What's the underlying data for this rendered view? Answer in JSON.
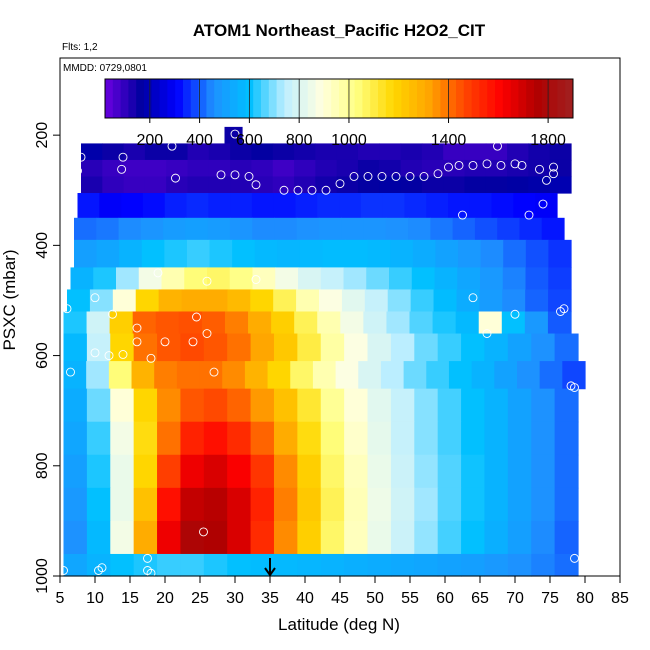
{
  "chart_data": {
    "type": "heatmap",
    "title": "ATOM1 Northeast_Pacific H2O2_CIT",
    "flights_label": "Flts: 1,2",
    "dates_label": "MMDD: 0729,0801",
    "xlabel": "Latitude (deg N)",
    "ylabel": "PSXC (mbar)",
    "xlim": [
      5,
      85
    ],
    "ylim": [
      1000,
      60
    ],
    "y_reversed": true,
    "x_ticks": [
      5,
      10,
      15,
      20,
      25,
      30,
      35,
      40,
      45,
      50,
      55,
      60,
      65,
      70,
      75,
      80,
      85
    ],
    "y_ticks": [
      200,
      400,
      600,
      800,
      1000
    ],
    "colorbar": {
      "range": [
        20,
        1900
      ],
      "tick_values": [
        200,
        400,
        600,
        800,
        1000,
        1400,
        1800
      ],
      "colors": [
        "#6a00e0",
        "#0000a0",
        "#0000ff",
        "#1e90ff",
        "#00bfff",
        "#bfefff",
        "#ffffe0",
        "#ffff80",
        "#ffd700",
        "#ffa500",
        "#ff4500",
        "#ff0000",
        "#b00000",
        "#a02020"
      ]
    },
    "marker": {
      "x": 35,
      "label": "arrow"
    },
    "rows": [
      {
        "p": [
          185,
          215
        ],
        "x": [
          28.5,
          31
        ],
        "v": [
          150
        ]
      },
      {
        "p": [
          215,
          245
        ],
        "x": [
          8,
          78
        ],
        "v": [
          180,
          150,
          130,
          150,
          150,
          120,
          130,
          150,
          160,
          150,
          140,
          130,
          130,
          120,
          120,
          130,
          120,
          90,
          90,
          90,
          120,
          140,
          150
        ]
      },
      {
        "p": [
          245,
          275
        ],
        "x": [
          8,
          78
        ],
        "v": [
          110,
          90,
          80,
          80,
          90,
          100,
          100,
          110,
          100,
          80,
          100,
          120,
          130,
          150,
          140,
          120,
          110,
          110,
          120,
          120,
          130,
          140,
          150
        ]
      },
      {
        "p": [
          275,
          305
        ],
        "x": [
          8,
          78
        ],
        "v": [
          130,
          100,
          90,
          90,
          110,
          120,
          120,
          120,
          110,
          100,
          120,
          140,
          150,
          160,
          170,
          160,
          150,
          150,
          160,
          160,
          170,
          180,
          190
        ]
      },
      {
        "p": [
          305,
          350
        ],
        "x": [
          7.5,
          76
        ],
        "v": [
          330,
          300,
          310,
          320,
          340,
          350,
          340,
          340,
          330,
          330,
          340,
          350,
          350,
          360,
          360,
          350,
          340,
          330,
          330,
          320,
          310,
          300
        ]
      },
      {
        "p": [
          350,
          390
        ],
        "x": [
          7,
          77
        ],
        "v": [
          420,
          430,
          450,
          470,
          490,
          500,
          490,
          470,
          450,
          450,
          460,
          470,
          470,
          470,
          460,
          450,
          430,
          410,
          390,
          370,
          350,
          330
        ]
      },
      {
        "p": [
          390,
          440
        ],
        "x": [
          7,
          78
        ],
        "v": [
          500,
          520,
          560,
          600,
          620,
          640,
          620,
          600,
          580,
          570,
          580,
          590,
          590,
          580,
          560,
          540,
          510,
          480,
          450,
          420,
          390,
          360
        ]
      },
      {
        "p": [
          440,
          480
        ],
        "x": [
          6.5,
          78
        ],
        "v": [
          560,
          620,
          720,
          860,
          960,
          1040,
          1060,
          1020,
          940,
          860,
          800,
          760,
          720,
          680,
          640,
          600,
          560,
          520,
          480,
          440,
          400,
          370
        ]
      },
      {
        "p": [
          480,
          520
        ],
        "x": [
          6,
          78
        ],
        "v": [
          600,
          700,
          900,
          1180,
          1280,
          1300,
          1300,
          1260,
          1180,
          1080,
          960,
          880,
          820,
          760,
          700,
          640,
          590,
          540,
          490,
          450,
          410,
          380
        ]
      },
      {
        "p": [
          520,
          560
        ],
        "x": [
          5.5,
          78
        ],
        "v": [
          620,
          780,
          1200,
          1420,
          1440,
          1450,
          1430,
          1380,
          1300,
          1200,
          1080,
          960,
          860,
          780,
          720,
          660,
          620,
          580,
          900,
          600,
          480,
          400
        ]
      },
      {
        "p": [
          560,
          610
        ],
        "x": [
          5.5,
          79
        ],
        "v": [
          580,
          760,
          1180,
          1400,
          1440,
          1460,
          1440,
          1400,
          1320,
          1220,
          1100,
          980,
          880,
          800,
          740,
          680,
          640,
          600,
          560,
          510,
          460,
          420
        ]
      },
      {
        "p": [
          610,
          660
        ],
        "x": [
          5.5,
          80
        ],
        "v": [
          560,
          720,
          1040,
          1280,
          1380,
          1400,
          1400,
          1360,
          1280,
          1180,
          1060,
          960,
          880,
          800,
          740,
          680,
          640,
          600,
          560,
          510,
          460,
          420,
          380
        ]
      },
      {
        "p": [
          660,
          720
        ],
        "x": [
          5.5,
          79
        ],
        "v": [
          540,
          680,
          900,
          1180,
          1360,
          1440,
          1460,
          1420,
          1340,
          1240,
          1120,
          1000,
          900,
          820,
          760,
          700,
          650,
          600,
          560,
          510,
          460,
          420
        ]
      },
      {
        "p": [
          720,
          780
        ],
        "x": [
          5.5,
          79
        ],
        "v": [
          520,
          640,
          860,
          1160,
          1400,
          1540,
          1580,
          1520,
          1420,
          1300,
          1160,
          1040,
          920,
          830,
          760,
          700,
          650,
          600,
          560,
          510,
          460,
          420
        ]
      },
      {
        "p": [
          780,
          840
        ],
        "x": [
          5.5,
          79
        ],
        "v": [
          500,
          620,
          840,
          1180,
          1480,
          1640,
          1680,
          1620,
          1500,
          1360,
          1200,
          1060,
          940,
          840,
          770,
          710,
          660,
          610,
          560,
          510,
          460,
          420
        ]
      },
      {
        "p": [
          840,
          900
        ],
        "x": [
          5.5,
          79
        ],
        "v": [
          480,
          600,
          840,
          1240,
          1580,
          1720,
          1740,
          1680,
          1540,
          1380,
          1220,
          1080,
          950,
          850,
          780,
          720,
          660,
          610,
          560,
          510,
          460,
          420
        ]
      },
      {
        "p": [
          900,
          960
        ],
        "x": [
          5.5,
          79
        ],
        "v": [
          460,
          580,
          860,
          1300,
          1640,
          1780,
          1760,
          1680,
          1520,
          1360,
          1200,
          1060,
          940,
          840,
          770,
          710,
          650,
          600,
          550,
          500,
          450,
          410
        ]
      },
      {
        "p": [
          960,
          1000
        ],
        "x": [
          5.5,
          79
        ],
        "v": [
          520,
          560,
          600,
          620,
          640,
          640,
          620,
          600,
          590,
          580,
          570,
          560,
          550,
          540,
          530,
          520,
          510,
          500,
          480,
          460,
          440,
          420
        ]
      }
    ],
    "points": [
      [
        8,
        240
      ],
      [
        7.5,
        265
      ],
      [
        14,
        240
      ],
      [
        13.8,
        262
      ],
      [
        21,
        220
      ],
      [
        21.5,
        278
      ],
      [
        27.5,
        198
      ],
      [
        30,
        198
      ],
      [
        28,
        272
      ],
      [
        30,
        272
      ],
      [
        32,
        275
      ],
      [
        33,
        290
      ],
      [
        37,
        300
      ],
      [
        39,
        300
      ],
      [
        41,
        300
      ],
      [
        43,
        300
      ],
      [
        45,
        288
      ],
      [
        47,
        275
      ],
      [
        49,
        275
      ],
      [
        51,
        275
      ],
      [
        53,
        275
      ],
      [
        55,
        275
      ],
      [
        57,
        275
      ],
      [
        59,
        270
      ],
      [
        60.5,
        258
      ],
      [
        62,
        255
      ],
      [
        64,
        255
      ],
      [
        66,
        252
      ],
      [
        68,
        255
      ],
      [
        70,
        252
      ],
      [
        71,
        255
      ],
      [
        73.5,
        262
      ],
      [
        74.5,
        282
      ],
      [
        75.5,
        258
      ],
      [
        75.5,
        270
      ],
      [
        67.5,
        220
      ],
      [
        74,
        325
      ],
      [
        72,
        345
      ],
      [
        62.5,
        345
      ],
      [
        19,
        450
      ],
      [
        26,
        465
      ],
      [
        33,
        462
      ],
      [
        10,
        495
      ],
      [
        64,
        495
      ],
      [
        6,
        515
      ],
      [
        77,
        515
      ],
      [
        76.5,
        520
      ],
      [
        12.5,
        525
      ],
      [
        16,
        550
      ],
      [
        16,
        575
      ],
      [
        20,
        575
      ],
      [
        24,
        575
      ],
      [
        24.5,
        530
      ],
      [
        26,
        560
      ],
      [
        70,
        525
      ],
      [
        66,
        560
      ],
      [
        10,
        595
      ],
      [
        12,
        600
      ],
      [
        14,
        598
      ],
      [
        18,
        605
      ],
      [
        6.5,
        630
      ],
      [
        27,
        630
      ],
      [
        78,
        655
      ],
      [
        78.5,
        658
      ],
      [
        25.5,
        920
      ],
      [
        78.5,
        968
      ],
      [
        17.5,
        968
      ],
      [
        17.5,
        990
      ],
      [
        18,
        995
      ],
      [
        11,
        985
      ],
      [
        10.5,
        990
      ],
      [
        5.5,
        990
      ]
    ]
  }
}
